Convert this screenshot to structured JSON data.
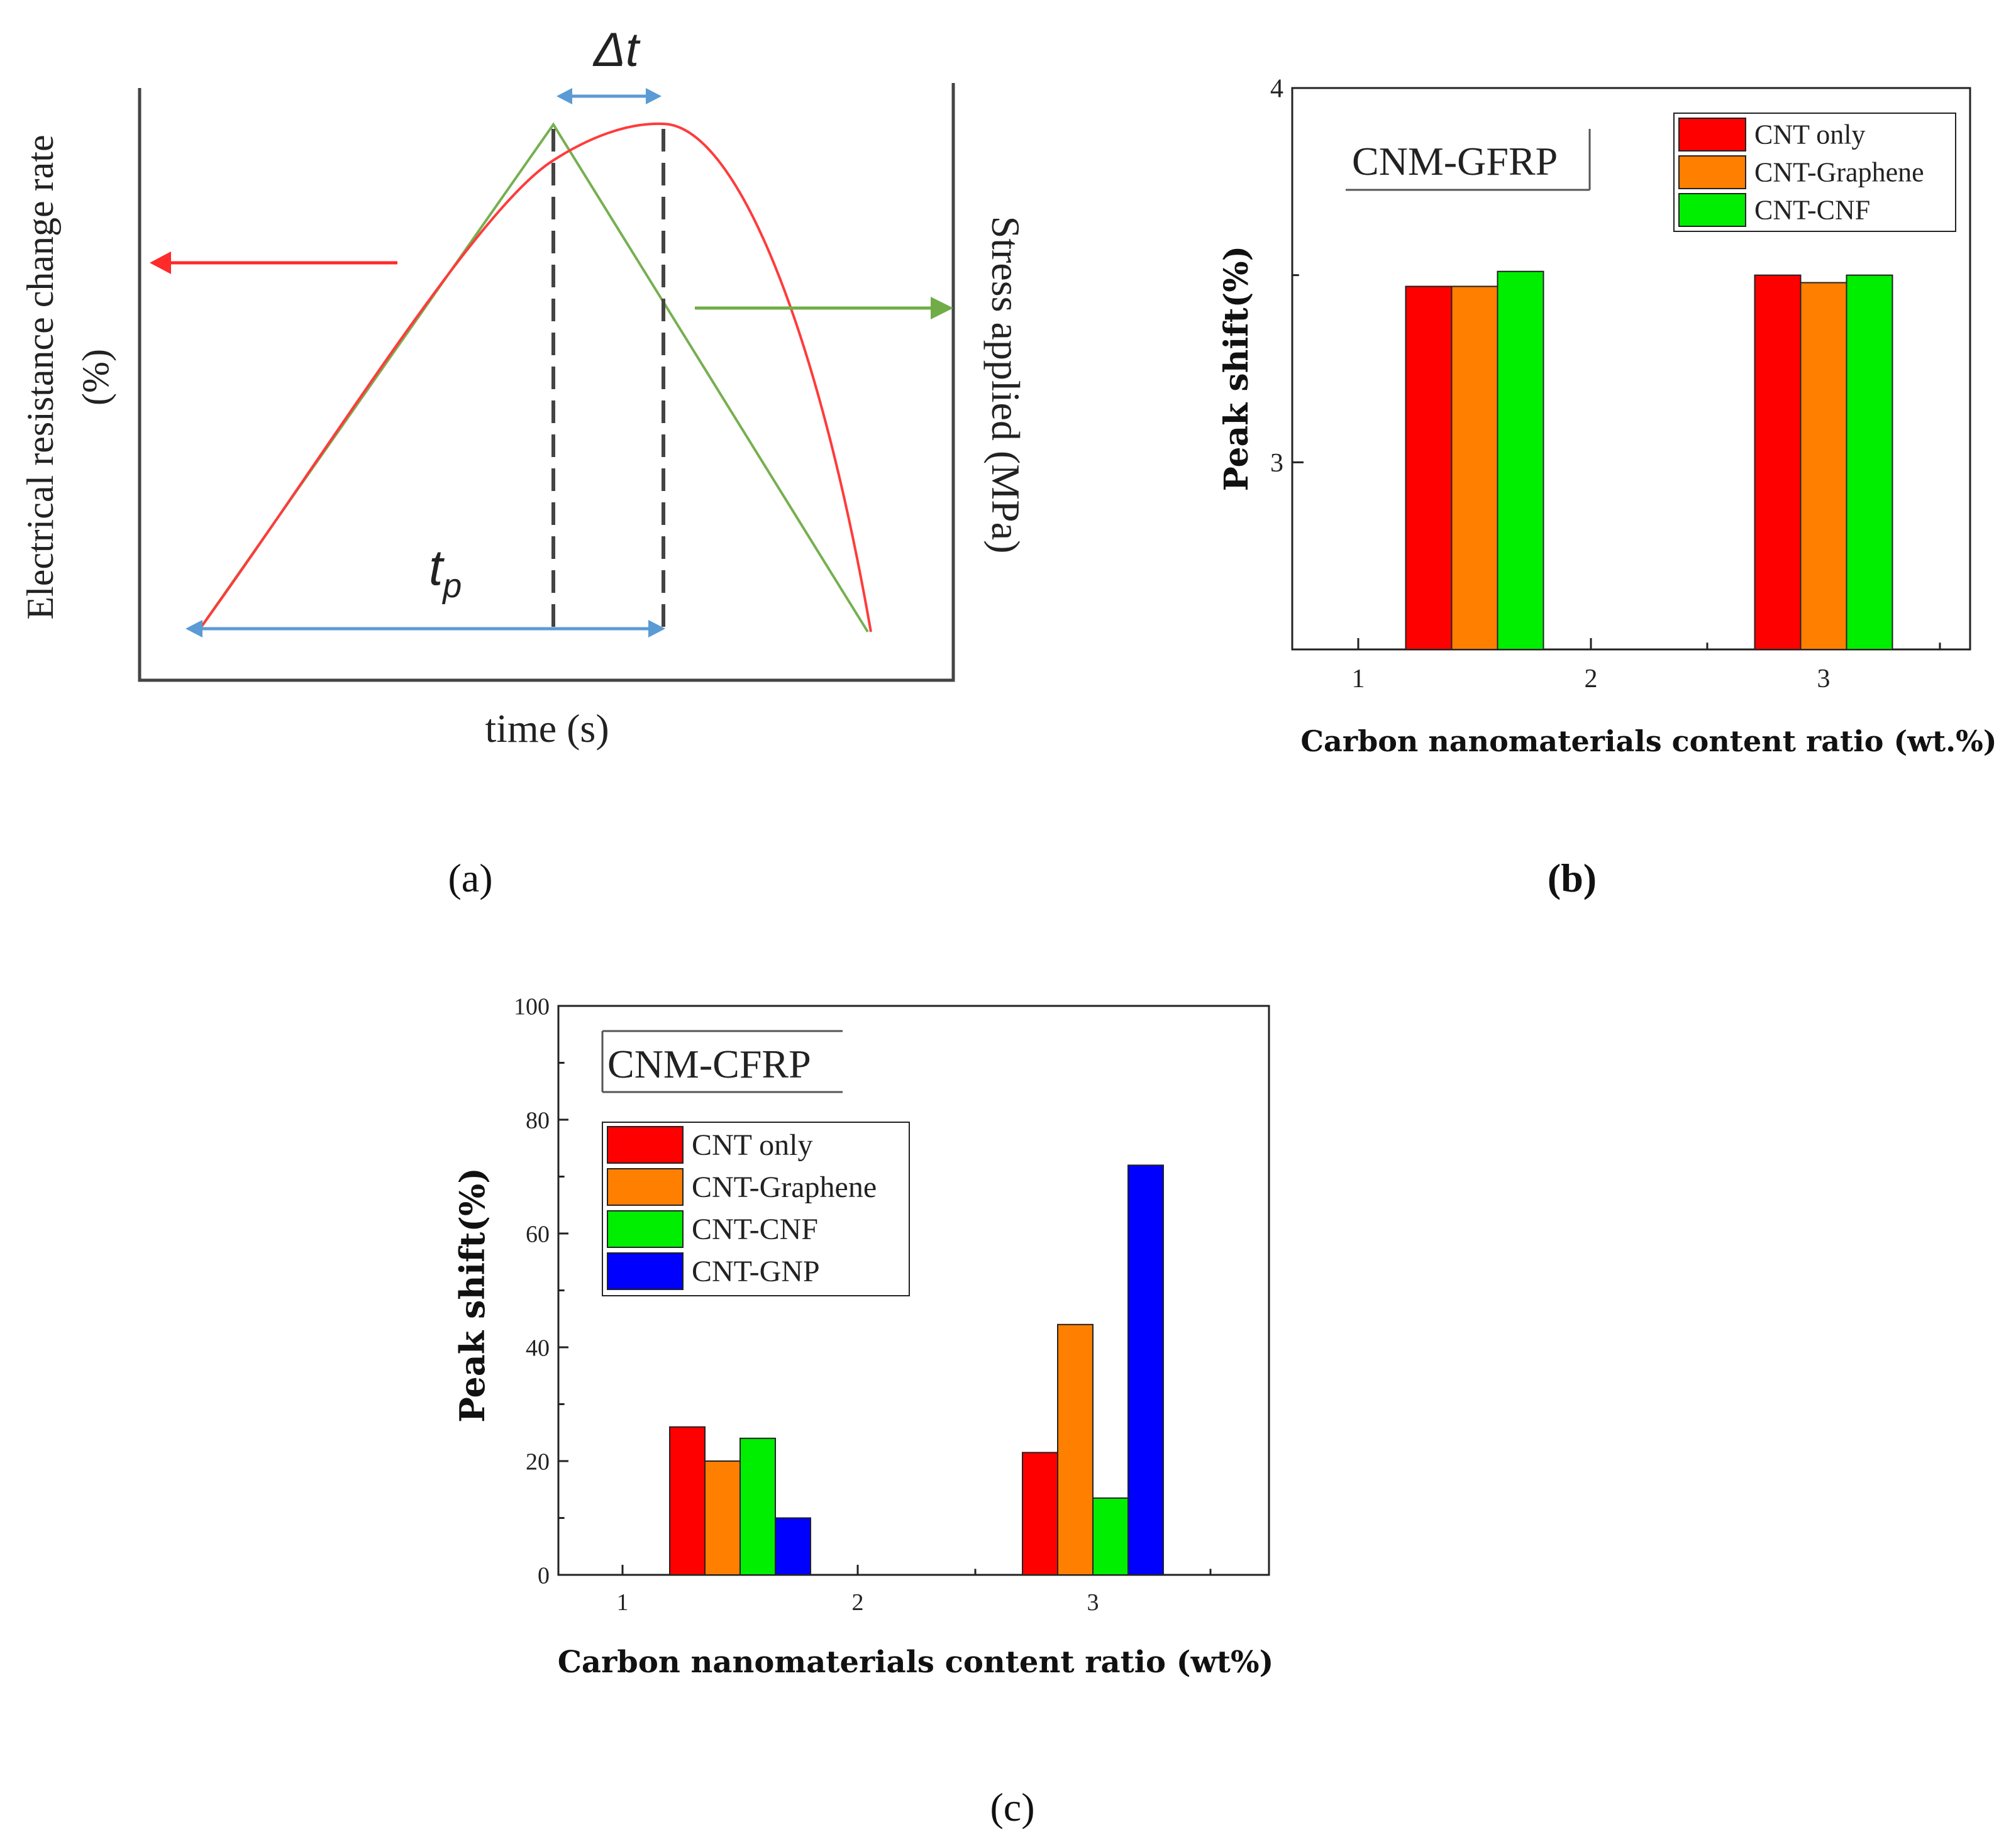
{
  "panel_labels": {
    "a": "(a)",
    "b": "(b)",
    "c": "(c)"
  },
  "colors": {
    "cnt_only": "#ff0000",
    "cnt_graphene": "#ff7f00",
    "cnt_cnf": "#00ee00",
    "cnt_gnp": "#0000ff",
    "resistance_curve": "#ff3333",
    "stress_curve": "#76b050",
    "annotation_arrow": "#5b9bd5"
  },
  "chart_data": [
    {
      "type": "line",
      "panel": "a",
      "title": "",
      "xlabel": "time (s)",
      "ylabel_left_line1": "Electrical resistance change rate",
      "ylabel_left_line2": "(%)",
      "ylabel_right": "Stress applied (MPa)",
      "annotations": {
        "delta_t": "Δt",
        "t_p_main": "t",
        "t_p_sub": "p"
      },
      "series": [
        {
          "name": "Stress applied",
          "shape": "triangle",
          "x": [
            0,
            0.5,
            1.0
          ],
          "y": [
            0,
            1,
            0
          ]
        },
        {
          "name": "Electrical resistance change rate",
          "shape": "lagging peak",
          "x": [
            0,
            0.72,
            1.0
          ],
          "y": [
            0,
            1,
            0
          ]
        }
      ]
    },
    {
      "type": "bar",
      "panel": "b",
      "inset_title": "CNM-GFRP",
      "xlabel": "Carbon nanomaterials content ratio (wt.%)",
      "ylabel": "Peak shift(%)",
      "categories": [
        "1",
        "2",
        "3"
      ],
      "x_ticks": [
        "1",
        "2",
        "3"
      ],
      "y_ticks": [
        "3",
        "4"
      ],
      "ylim": [
        2.5,
        4.0
      ],
      "legend_position": "top-right",
      "series": [
        {
          "name": "CNT only",
          "x": [
            1.5,
            3.0
          ],
          "values": [
            3.47,
            3.5
          ]
        },
        {
          "name": "CNT-Graphene",
          "x": [
            1.5,
            3.0
          ],
          "values": [
            3.47,
            3.48
          ]
        },
        {
          "name": "CNT-CNF",
          "x": [
            1.5,
            3.0
          ],
          "values": [
            3.51,
            3.5
          ]
        }
      ]
    },
    {
      "type": "bar",
      "panel": "c",
      "inset_title": "CNM-CFRP",
      "xlabel": "Carbon nanomaterials content ratio (wt%)",
      "ylabel": "Peak shift(%)",
      "categories": [
        "1",
        "2",
        "3"
      ],
      "x_ticks": [
        "1",
        "2",
        "3"
      ],
      "y_ticks": [
        "0",
        "20",
        "40",
        "60",
        "80",
        "100"
      ],
      "ylim": [
        0,
        100
      ],
      "legend_position": "top-left",
      "series": [
        {
          "name": "CNT only",
          "x": [
            1.5,
            3.0
          ],
          "values": [
            26,
            21.5
          ]
        },
        {
          "name": "CNT-Graphene",
          "x": [
            1.5,
            3.0
          ],
          "values": [
            20,
            44
          ]
        },
        {
          "name": "CNT-CNF",
          "x": [
            1.5,
            3.0
          ],
          "values": [
            24,
            13.5
          ]
        },
        {
          "name": "CNT-GNP",
          "x": [
            1.5,
            3.0
          ],
          "values": [
            10,
            72
          ]
        }
      ]
    }
  ]
}
